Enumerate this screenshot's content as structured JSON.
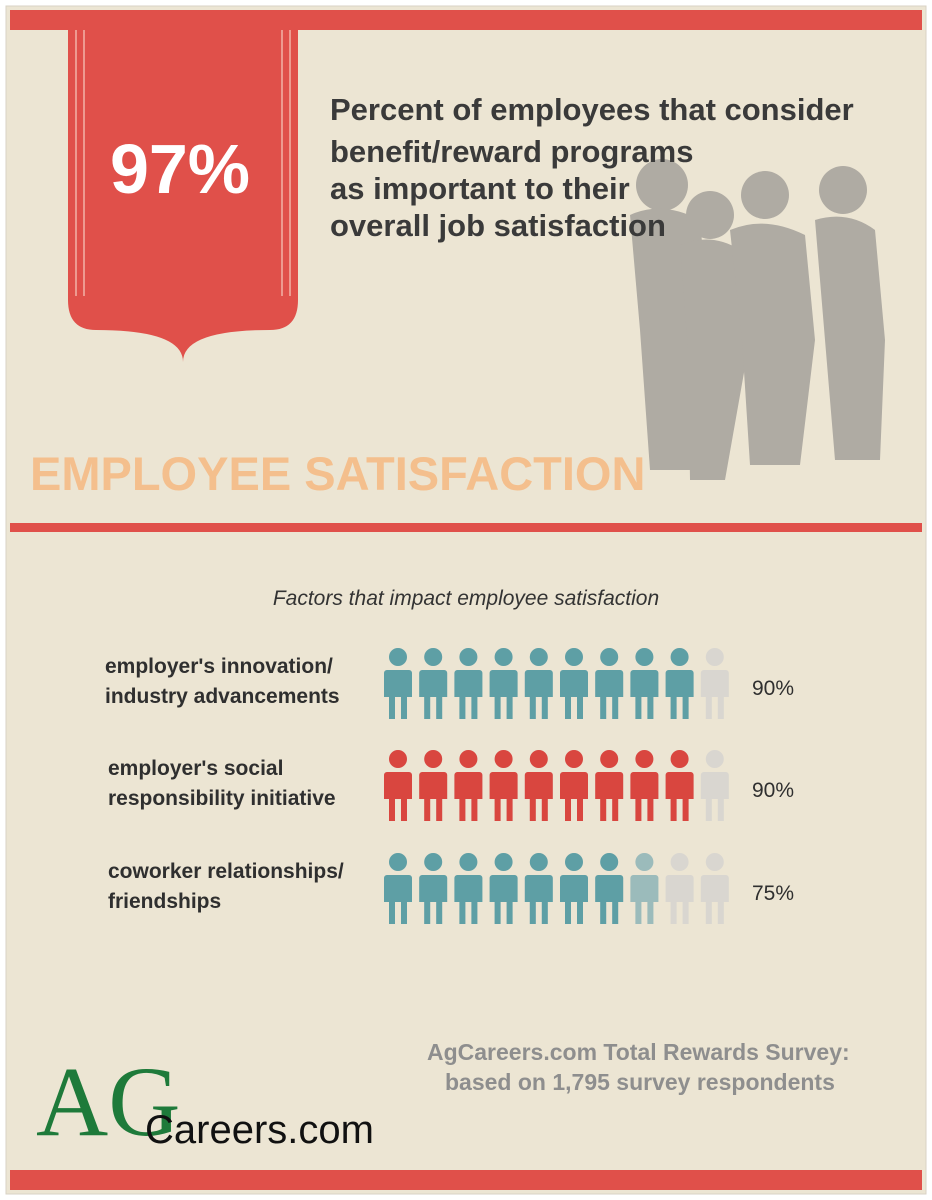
{
  "header": {
    "stat": "97%",
    "headline_lines": [
      "Percent of employees that consider",
      "benefit/reward programs",
      "as important to their",
      "overall job satisfaction"
    ],
    "section_title": "EMPLOYEE SATISFACTION"
  },
  "factors": {
    "title": "Factors that impact employee satisfaction",
    "items": [
      {
        "label_lines": [
          "employer's innovation/",
          "industry advancements"
        ],
        "value": 90,
        "value_label": "90%",
        "color": "#5e9fa5"
      },
      {
        "label_lines": [
          "employer's social",
          "responsibility initiative"
        ],
        "value": 90,
        "value_label": "90%",
        "color": "#d9463f"
      },
      {
        "label_lines": [
          "coworker relationships/",
          "friendships"
        ],
        "value": 75,
        "value_label": "75%",
        "color": "#5e9fa5"
      }
    ]
  },
  "footer": {
    "source_lines": [
      "AgCareers.com Total Rewards Survey:",
      "based on 1,795 survey respondents"
    ],
    "logo_mark": "AG",
    "logo_text": "Careers.com"
  }
}
